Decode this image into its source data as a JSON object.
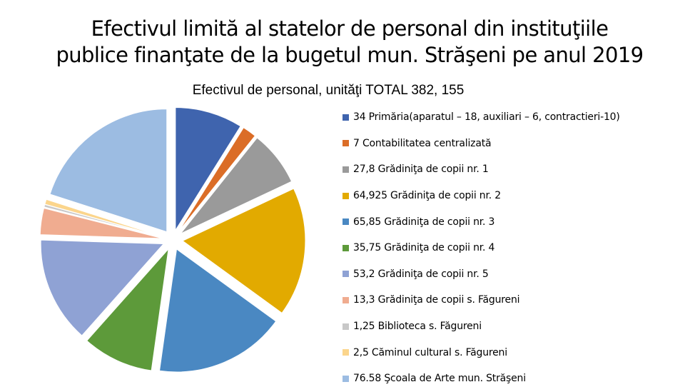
{
  "slide": {
    "title_line1": "Efectivul limită al statelor de personal din instituţiile",
    "title_line2": "publice finanţate de la bugetul mun. Străşeni  pe anul 2019"
  },
  "chart_data": {
    "type": "pie",
    "exploded": true,
    "title": "Efectivul de personal, unităţi TOTAL 382, 155",
    "legend_position": "right",
    "slices": [
      {
        "label": "34 Primăria(aparatul – 18, auxiliari – 6, contractieri-10)",
        "value": 34,
        "color": "#3f64ae"
      },
      {
        "label": "7 Contabilitatea centralizată",
        "value": 7,
        "color": "#db6d27"
      },
      {
        "label": "27,8 Grădiniţa de copii nr. 1",
        "value": 27.8,
        "color": "#9a9a9a"
      },
      {
        "label": "64,925 Grădiniţa de copii nr. 2",
        "value": 64.925,
        "color": "#e2aa00"
      },
      {
        "label": "65,85 Grădiniţa de copii nr. 3",
        "value": 65.85,
        "color": "#4a88c2"
      },
      {
        "label": "35,75 Grădiniţa de copii nr. 4",
        "value": 35.75,
        "color": "#5d9a3a"
      },
      {
        "label": "53,2 Grădiniţa de copii nr. 5",
        "value": 53.2,
        "color": "#8fa2d4"
      },
      {
        "label": "13,3 Grădiniţa de copii s. Făgureni",
        "value": 13.3,
        "color": "#f0ac90"
      },
      {
        "label": "1,25 Biblioteca s. Făgureni",
        "value": 1.25,
        "color": "#c8c8c8"
      },
      {
        "label": "2,5 Căminul cultural s. Făgureni",
        "value": 2.5,
        "color": "#fbd58c"
      },
      {
        "label": "76.58  Şcoala de Arte mun. Străşeni",
        "value": 76.58,
        "color": "#9cbce2"
      }
    ]
  }
}
